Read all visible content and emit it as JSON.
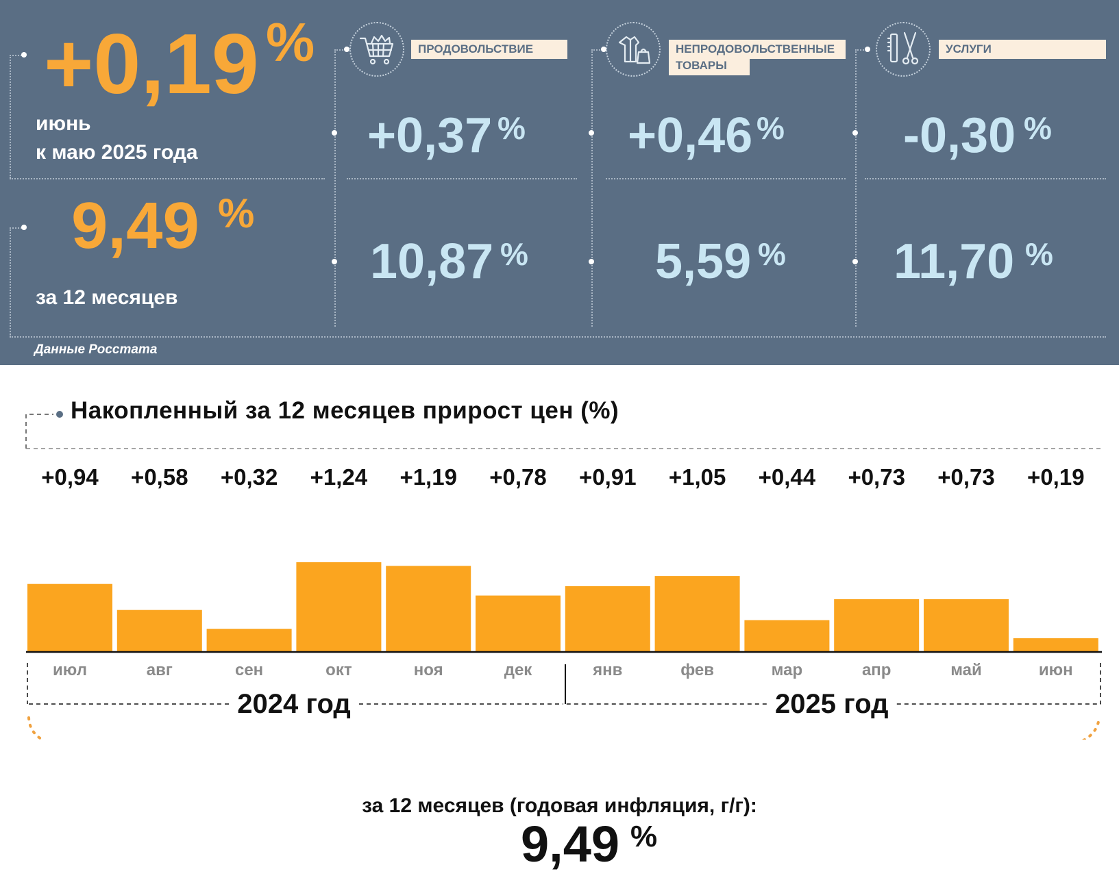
{
  "summary": {
    "monthly": {
      "value": "+0,19",
      "percent_sign": "%",
      "label_line1": "июнь",
      "label_line2": "к маю 2025 года"
    },
    "annual": {
      "value": "9,49",
      "percent_sign": "%",
      "label": "за 12 месяцев"
    },
    "source": "Данные Росстата"
  },
  "categories": [
    {
      "label": "ПРОДОВОЛЬСТВИЕ",
      "icon": "shopping-cart-icon",
      "monthly": "+0,37",
      "annual": "10,87",
      "percent_sign": "%"
    },
    {
      "label": "НЕПРОДОВОЛЬСТВЕННЫЕ ТОВАРЫ",
      "label_line1": "НЕПРОДОВОЛЬСТВЕННЫЕ",
      "label_line2": "ТОВАРЫ",
      "icon": "clothing-bag-icon",
      "monthly": "+0,46",
      "annual": "5,59",
      "percent_sign": "%"
    },
    {
      "label": "УСЛУГИ",
      "icon": "comb-scissors-icon",
      "monthly": "-0,30",
      "annual": "11,70",
      "percent_sign": "%"
    }
  ],
  "colors": {
    "panel_bg": "#5a6e84",
    "orange": "#f8a838",
    "bar": "#fba51f",
    "light_blue": "#c9e6f3",
    "label_bg": "#fbeede"
  },
  "chart_data": {
    "type": "bar",
    "title": "Накопленный за 12 месяцев прирост цен (%)",
    "categories": [
      "июл",
      "авг",
      "сен",
      "окт",
      "ноя",
      "дек",
      "янв",
      "фев",
      "мар",
      "апр",
      "май",
      "июн"
    ],
    "values": [
      0.94,
      0.58,
      0.32,
      1.24,
      1.19,
      0.78,
      0.91,
      1.05,
      0.44,
      0.73,
      0.73,
      0.19
    ],
    "value_labels": [
      "+0,94",
      "+0,58",
      "+0,32",
      "+1,24",
      "+1,19",
      "+0,78",
      "+0,91",
      "+1,05",
      "+0,44",
      "+0,73",
      "+0,73",
      "+0,19"
    ],
    "year_groups": [
      {
        "label": "2024 год",
        "months": 6
      },
      {
        "label": "2025 год",
        "months": 6
      }
    ],
    "ylim": [
      0,
      1.24
    ],
    "grid": false,
    "legend": "none",
    "total_label": "за 12 месяцев (годовая инфляция, г/г):",
    "total_value": "9,49",
    "total_percent_sign": "%"
  }
}
